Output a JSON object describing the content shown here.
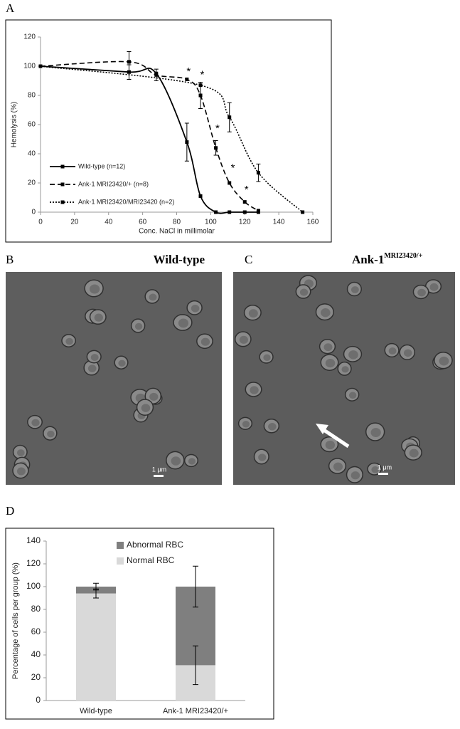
{
  "chart_data": [
    {
      "type": "line",
      "panel": "A",
      "x_label": "Conc. NaCl in millimolar",
      "y_label": "Hemolysis (%)",
      "xlim": [
        0,
        160
      ],
      "ylim": [
        0,
        120
      ],
      "xticks": [
        0,
        20,
        40,
        60,
        80,
        100,
        120,
        140,
        160
      ],
      "yticks": [
        0,
        20,
        40,
        60,
        80,
        100,
        120
      ],
      "legend": "lower left",
      "series": [
        {
          "name": "Wild-type (n=12)",
          "color": "#000000",
          "dash": "solid",
          "x": [
            0,
            52,
            68,
            86,
            94,
            103,
            111,
            120,
            128
          ],
          "values": [
            100,
            96,
            95,
            48,
            11,
            0,
            0,
            0,
            0
          ],
          "errors": [
            null,
            5,
            null,
            13,
            null,
            null,
            null,
            null,
            null
          ]
        },
        {
          "name": "Ank-1 MRI23420/+ (n=8)",
          "color": "#000000",
          "dash": "dashed",
          "x": [
            0,
            52,
            68,
            86,
            94,
            103,
            111,
            120,
            128
          ],
          "values": [
            100,
            103,
            94,
            91,
            80,
            44,
            20,
            7,
            1
          ],
          "errors": [
            null,
            7,
            4,
            null,
            9,
            5,
            null,
            null,
            null
          ]
        },
        {
          "name": "Ank-1 MRI23420/MRI23420 (n=2)",
          "color": "#000000",
          "dash": "dotted",
          "x": [
            0,
            94,
            111,
            128,
            154
          ],
          "values": [
            100,
            87,
            65,
            27,
            0
          ],
          "errors": [
            null,
            null,
            10,
            6,
            null
          ]
        }
      ],
      "annotations": [
        {
          "text": "*",
          "x": 87,
          "y": 96
        },
        {
          "text": "*",
          "x": 95,
          "y": 94
        },
        {
          "text": "*",
          "x": 104,
          "y": 57
        },
        {
          "text": "*",
          "x": 113,
          "y": 30
        },
        {
          "text": "*",
          "x": 121,
          "y": 15
        }
      ]
    },
    {
      "type": "bar",
      "stacked": true,
      "panel": "D",
      "y_label": "Percentage of cells per group (%)",
      "categories": [
        "Wild-type",
        "Ank-1 MRI23420/+"
      ],
      "ylim": [
        0,
        140
      ],
      "yticks": [
        0,
        20,
        40,
        60,
        80,
        100,
        120,
        140
      ],
      "legend": "upper left",
      "series": [
        {
          "name": "Normal RBC",
          "color": "#d9d9d9",
          "values": [
            94,
            31
          ],
          "errors": [
            4,
            17
          ]
        },
        {
          "name": "Abnormal RBC",
          "color": "#7f7f7f",
          "values": [
            6,
            69
          ],
          "errors": [
            3,
            18
          ]
        }
      ]
    }
  ],
  "images": [
    {
      "label": "B",
      "title": "Wild-type",
      "scale_bar": "1 μm"
    },
    {
      "label": "C",
      "title": "Ank-1",
      "title_sup": "MRI23420/+",
      "scale_bar": "1 μm"
    }
  ]
}
